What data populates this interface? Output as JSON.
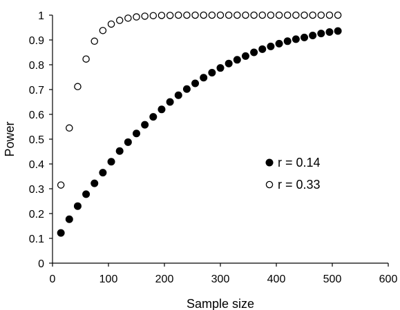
{
  "chart_data": {
    "type": "scatter",
    "title": "",
    "xlabel": "Sample size",
    "ylabel": "Power",
    "xlim": [
      0,
      600
    ],
    "ylim": [
      0,
      1
    ],
    "xticks": [
      0,
      100,
      200,
      300,
      400,
      500,
      600
    ],
    "yticks": [
      0,
      0.1,
      0.2,
      0.3,
      0.4,
      0.5,
      0.6,
      0.7,
      0.8,
      0.9,
      1
    ],
    "ytick_labels": [
      "0",
      "0.1",
      "0.2",
      "0.3",
      "0.4",
      "0.5",
      "0.6",
      "0.7",
      "0.8",
      "0.9",
      "1"
    ],
    "grid": false,
    "legend_position": "center-right",
    "series": [
      {
        "name": "r = 0.14",
        "marker": "filled-circle",
        "color": "#000000",
        "x": [
          15,
          30,
          45,
          60,
          75,
          90,
          105,
          120,
          135,
          150,
          165,
          180,
          195,
          210,
          225,
          240,
          255,
          270,
          285,
          300,
          315,
          330,
          345,
          360,
          375,
          390,
          405,
          420,
          435,
          450,
          465,
          480,
          495,
          510
        ],
        "y": [
          0.122,
          0.177,
          0.23,
          0.278,
          0.322,
          0.365,
          0.409,
          0.452,
          0.488,
          0.523,
          0.558,
          0.59,
          0.62,
          0.65,
          0.677,
          0.702,
          0.725,
          0.748,
          0.768,
          0.787,
          0.805,
          0.82,
          0.835,
          0.85,
          0.863,
          0.874,
          0.885,
          0.895,
          0.903,
          0.91,
          0.918,
          0.926,
          0.932,
          0.936
        ]
      },
      {
        "name": "r = 0.33",
        "marker": "open-circle",
        "color": "#000000",
        "x": [
          15,
          30,
          45,
          60,
          75,
          90,
          105,
          120,
          135,
          150,
          165,
          180,
          195,
          210,
          225,
          240,
          255,
          270,
          285,
          300,
          315,
          330,
          345,
          360,
          375,
          390,
          405,
          420,
          435,
          450,
          465,
          480,
          495,
          510
        ],
        "y": [
          0.315,
          0.545,
          0.712,
          0.823,
          0.895,
          0.938,
          0.964,
          0.979,
          0.988,
          0.993,
          0.996,
          0.998,
          0.999,
          0.999,
          1.0,
          1.0,
          1.0,
          1.0,
          1.0,
          1.0,
          1.0,
          1.0,
          1.0,
          1.0,
          1.0,
          1.0,
          1.0,
          1.0,
          1.0,
          1.0,
          1.0,
          1.0,
          1.0,
          1.0
        ]
      }
    ]
  }
}
